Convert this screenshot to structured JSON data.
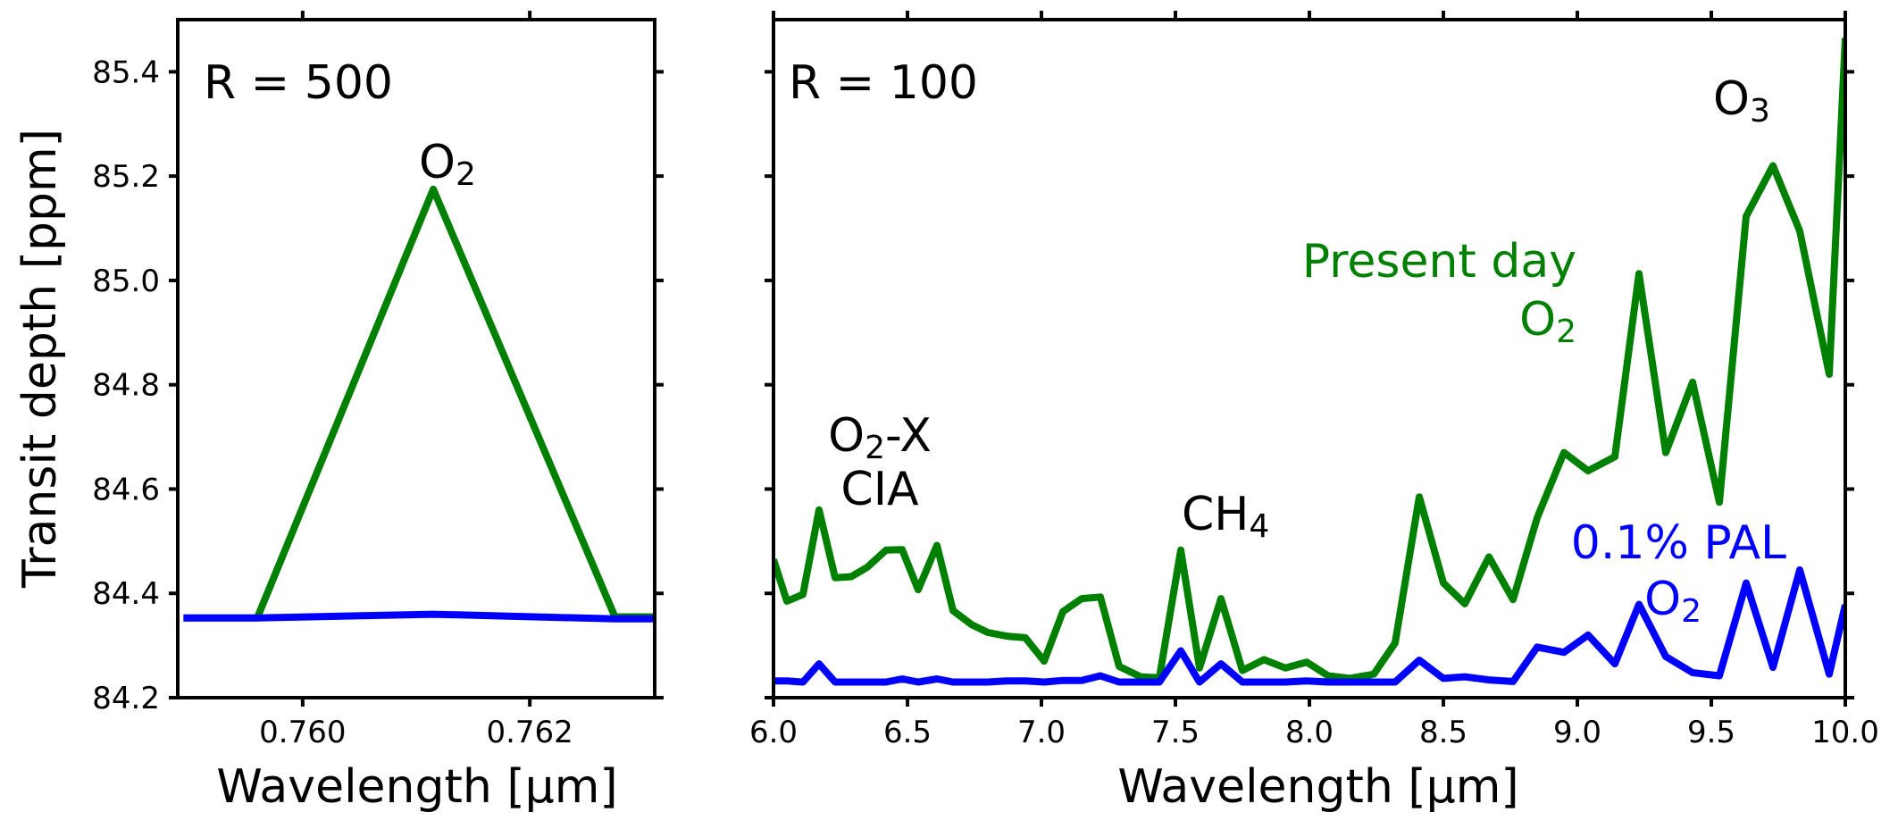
{
  "chart_data": [
    {
      "type": "line",
      "panel": "left",
      "xlabel": "Wavelength [µm]",
      "ylabel": "Transit depth [ppm]",
      "xlim": [
        0.7589,
        0.7631
      ],
      "ylim": [
        84.2,
        85.5
      ],
      "xticks": [
        0.76,
        0.762
      ],
      "xtick_labels": [
        "0.760",
        "0.762"
      ],
      "yticks": [
        84.2,
        84.4,
        84.6,
        84.8,
        85.0,
        85.2,
        85.4
      ],
      "ytick_labels": [
        "84.2",
        "84.4",
        "84.6",
        "84.8",
        "85.0",
        "85.2",
        "85.4"
      ],
      "annotations": {
        "resolution": "R = 500",
        "band_main": "O",
        "band_sub": "2"
      },
      "series": [
        {
          "color": "#008000",
          "x": [
            0.75895,
            0.7596,
            0.76115,
            0.76275,
            0.7631
          ],
          "y": [
            84.353,
            84.353,
            85.175,
            84.355,
            84.355
          ]
        },
        {
          "color": "#0000ff",
          "x": [
            0.75895,
            0.7596,
            0.76115,
            0.76275,
            0.7631
          ],
          "y": [
            84.353,
            84.353,
            84.36,
            84.351,
            84.351
          ]
        }
      ]
    },
    {
      "type": "line",
      "panel": "right",
      "xlabel": "Wavelength [µm]",
      "xlim": [
        6.0,
        10.0
      ],
      "ylim": [
        84.2,
        85.5
      ],
      "xticks": [
        6.0,
        6.5,
        7.0,
        7.5,
        8.0,
        8.5,
        9.0,
        9.5,
        10.0
      ],
      "xtick_labels": [
        "6.0",
        "6.5",
        "7.0",
        "7.5",
        "8.0",
        "8.5",
        "9.0",
        "9.5",
        "10.0"
      ],
      "annotations": {
        "resolution": "R = 100",
        "o3_main": "O",
        "o3_sub": "3",
        "cia_line1_main": "O",
        "cia_line1_sub": "2",
        "cia_line1_suffix": "-X",
        "cia_line2": "CIA",
        "ch4_main": "CH",
        "ch4_sub": "4",
        "present_line1": "Present day",
        "present_line2_main": "O",
        "present_line2_sub": "2",
        "pal_line1": "0.1% PAL",
        "pal_line2_main": "O",
        "pal_line2_sub": "2"
      },
      "series": [
        {
          "color": "#008000",
          "x": [
            6.0,
            6.05,
            6.11,
            6.17,
            6.23,
            6.29,
            6.35,
            6.42,
            6.48,
            6.54,
            6.61,
            6.67,
            6.74,
            6.8,
            6.87,
            6.94,
            7.01,
            7.08,
            7.15,
            7.22,
            7.29,
            7.37,
            7.44,
            7.52,
            7.59,
            7.67,
            7.75,
            7.83,
            7.91,
            7.99,
            8.07,
            8.15,
            8.24,
            8.32,
            8.41,
            8.5,
            8.58,
            8.67,
            8.76,
            8.85,
            8.95,
            9.04,
            9.14,
            9.23,
            9.33,
            9.43,
            9.53,
            9.63,
            9.73,
            9.83,
            9.94,
            10.0
          ],
          "y": [
            84.465,
            84.385,
            84.398,
            84.56,
            84.43,
            84.432,
            84.45,
            84.483,
            84.484,
            84.407,
            84.492,
            84.367,
            84.34,
            84.325,
            84.318,
            84.315,
            84.27,
            84.365,
            84.39,
            84.393,
            84.26,
            84.24,
            84.238,
            84.483,
            84.257,
            84.39,
            84.252,
            84.273,
            84.257,
            84.268,
            84.242,
            84.237,
            84.245,
            84.305,
            84.585,
            84.42,
            84.38,
            84.47,
            84.388,
            84.545,
            84.67,
            84.635,
            84.662,
            85.013,
            84.67,
            84.805,
            84.575,
            85.123,
            85.22,
            85.095,
            84.82,
            85.465
          ]
        },
        {
          "color": "#0000ff",
          "x": [
            6.0,
            6.05,
            6.11,
            6.17,
            6.23,
            6.29,
            6.35,
            6.42,
            6.48,
            6.54,
            6.61,
            6.67,
            6.74,
            6.8,
            6.87,
            6.94,
            7.01,
            7.08,
            7.15,
            7.22,
            7.29,
            7.37,
            7.44,
            7.52,
            7.59,
            7.67,
            7.75,
            7.83,
            7.91,
            7.99,
            8.07,
            8.15,
            8.24,
            8.32,
            8.41,
            8.5,
            8.58,
            8.67,
            8.76,
            8.85,
            8.95,
            9.04,
            9.14,
            9.23,
            9.33,
            9.43,
            9.53,
            9.63,
            9.73,
            9.83,
            9.94,
            10.0
          ],
          "y": [
            84.232,
            84.232,
            84.23,
            84.265,
            84.23,
            84.23,
            84.23,
            84.23,
            84.236,
            84.23,
            84.236,
            84.23,
            84.23,
            84.23,
            84.232,
            84.232,
            84.23,
            84.233,
            84.233,
            84.242,
            84.23,
            84.23,
            84.23,
            84.29,
            84.23,
            84.265,
            84.23,
            84.23,
            84.23,
            84.232,
            84.23,
            84.23,
            84.23,
            84.23,
            84.272,
            84.237,
            84.24,
            84.234,
            84.231,
            84.297,
            84.287,
            84.32,
            84.265,
            84.379,
            84.279,
            84.248,
            84.242,
            84.42,
            84.258,
            84.445,
            84.245,
            84.378
          ]
        }
      ]
    }
  ]
}
